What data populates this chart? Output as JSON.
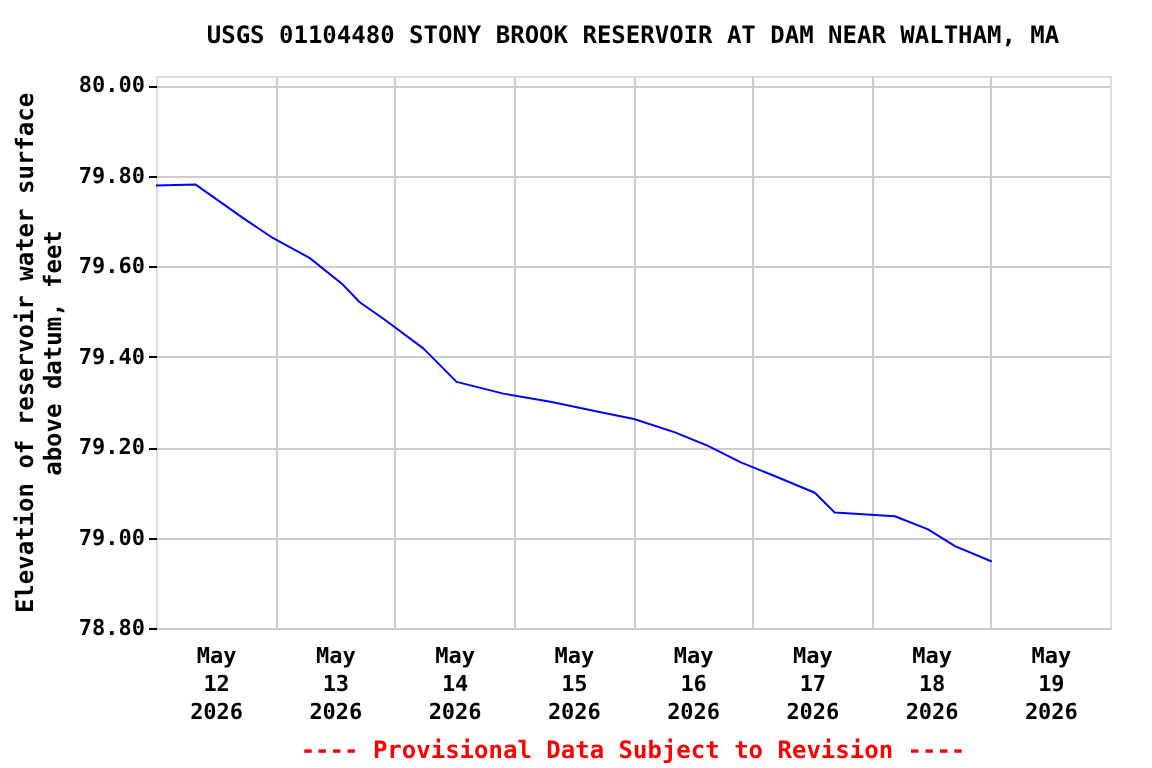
{
  "chart_data": {
    "type": "line",
    "title": "USGS 01104480 STONY BROOK RESERVOIR AT DAM NEAR WALTHAM, MA",
    "ylabel": "Elevation of reservoir water surface\nabove datum, feet",
    "annotations": [
      "---- Provisional Data Subject to Revision ----"
    ],
    "x": [
      "2026-05-12T00:00",
      "2026-05-12T08:00",
      "2026-05-12T17:24",
      "2026-05-12T23:30",
      "2026-05-13T06:54",
      "2026-05-13T13:36",
      "2026-05-13T17:00",
      "2026-05-13T21:42",
      "2026-05-14T05:48",
      "2026-05-14T12:30",
      "2026-05-14T21:54",
      "2026-05-15T07:24",
      "2026-05-15T17:30",
      "2026-05-16T00:12",
      "2026-05-16T08:18",
      "2026-05-16T15:00",
      "2026-05-16T21:42",
      "2026-05-17T04:30",
      "2026-05-17T12:36",
      "2026-05-17T16:36",
      "2026-05-18T04:42",
      "2026-05-18T11:24",
      "2026-05-18T16:48",
      "2026-05-19T00:12"
    ],
    "series": [
      {
        "color": "#0000ff",
        "values": [
          79.778,
          79.78,
          79.707,
          79.662,
          79.618,
          79.559,
          79.52,
          79.484,
          79.418,
          79.344,
          79.318,
          79.3,
          79.277,
          79.262,
          79.233,
          79.203,
          79.166,
          79.136,
          79.099,
          79.055,
          79.047,
          79.018,
          78.981,
          78.947
        ]
      }
    ],
    "xlim": [
      "2026-05-12T00:00",
      "2026-05-20T00:00"
    ],
    "xticks": [
      {
        "value": "2026-05-12T12:00",
        "label": "May 12 2026"
      },
      {
        "value": "2026-05-13T12:00",
        "label": "May 13 2026"
      },
      {
        "value": "2026-05-14T12:00",
        "label": "May 14 2026"
      },
      {
        "value": "2026-05-15T12:00",
        "label": "May 15 2026"
      },
      {
        "value": "2026-05-16T12:00",
        "label": "May 16 2026"
      },
      {
        "value": "2026-05-17T12:00",
        "label": "May 17 2026"
      },
      {
        "value": "2026-05-18T12:00",
        "label": "May 18 2026"
      },
      {
        "value": "2026-05-19T12:00",
        "label": "May 19 2026"
      },
      {
        "value": "2026-05-13T00:00",
        "label": null
      },
      {
        "value": "2026-05-14T00:00",
        "label": null
      },
      {
        "value": "2026-05-15T00:00",
        "label": null
      },
      {
        "value": "2026-05-16T00:00",
        "label": null
      },
      {
        "value": "2026-05-17T00:00",
        "label": null
      },
      {
        "value": "2026-05-18T00:00",
        "label": null
      },
      {
        "value": "2026-05-19T00:00",
        "label": null
      }
    ],
    "ylim": [
      78.8,
      80.02
    ],
    "yticks": [
      {
        "value": 78.8,
        "label": "78.80"
      },
      {
        "value": 79.0,
        "label": "79.00"
      },
      {
        "value": 79.2,
        "label": "79.20"
      },
      {
        "value": 79.4,
        "label": "79.40"
      },
      {
        "value": 79.6,
        "label": "79.60"
      },
      {
        "value": 79.8,
        "label": "79.80"
      },
      {
        "value": 80.0,
        "label": "80.00"
      }
    ],
    "grid": true
  }
}
